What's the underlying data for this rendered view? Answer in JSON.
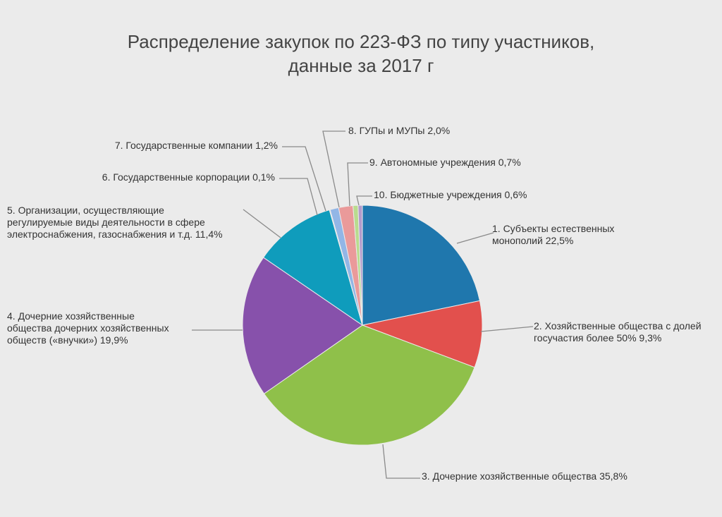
{
  "chart_data": {
    "type": "pie",
    "title": [
      "Распределение закупок по 223-ФЗ по типу участников,",
      "данные за 2017 г"
    ],
    "slices": [
      {
        "label": [
          "1. Субъекты естественных",
          "монополий 22,5%"
        ],
        "value": 22.5,
        "color": "#1f77ad"
      },
      {
        "label": [
          "2. Хозяйственные общества с долей",
          "госучастия более 50% 9,3%"
        ],
        "value": 9.3,
        "color": "#e2504d"
      },
      {
        "label": [
          "3. Дочерние хозяйственные общества 35,8%"
        ],
        "value": 35.8,
        "color": "#8fc04a"
      },
      {
        "label": [
          "4. Дочерние хозяйственные",
          "общества дочерних хозяйственных",
          "обществ («внучки») 19,9%"
        ],
        "value": 19.9,
        "color": "#8751ab"
      },
      {
        "label": [
          "5. Организации, осуществляющие",
          "регулируемые виды деятельности в сфере",
          "электроснабжения, газоснабжения и т.д. 11,4%"
        ],
        "value": 11.4,
        "color": "#0f9cbc"
      },
      {
        "label": [
          "6. Государственные корпорации 0,1%"
        ],
        "value": 0.1,
        "color": "#e87d2a"
      },
      {
        "label": [
          "7. Государственные компании 1,2%"
        ],
        "value": 1.2,
        "color": "#92b6e6"
      },
      {
        "label": [
          "8. ГУПы и МУПы 2,0%"
        ],
        "value": 2.0,
        "color": "#ea9a9a"
      },
      {
        "label": [
          "9. Автономные учреждения 0,7%"
        ],
        "value": 0.7,
        "color": "#b9dc8e"
      },
      {
        "label": [
          "10. Бюджетные учреждения 0,6%"
        ],
        "value": 0.6,
        "color": "#b39bcc"
      }
    ],
    "start_angle": "12 o'clock",
    "direction": "clockwise"
  }
}
